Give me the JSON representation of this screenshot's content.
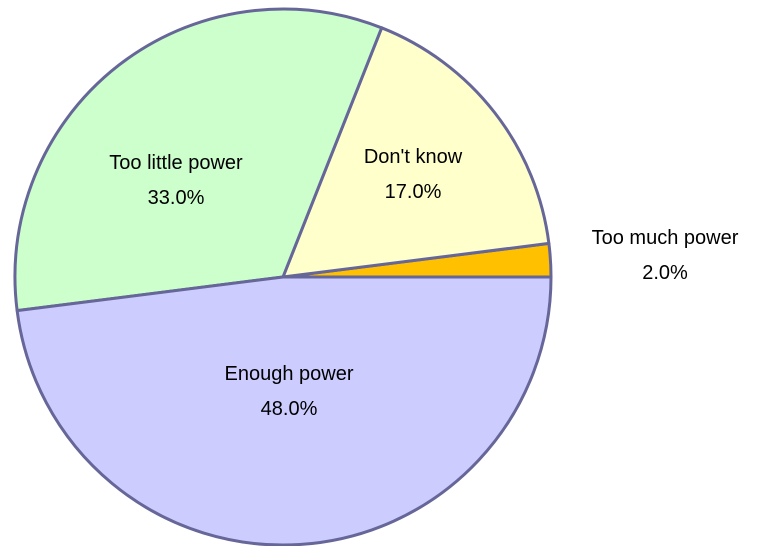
{
  "chart_data": {
    "type": "pie",
    "title": "",
    "slices": [
      {
        "label": "Too much power",
        "value": 2.0,
        "value_label": "2.0%",
        "color": "#ffc000"
      },
      {
        "label": "Don't know",
        "value": 17.0,
        "value_label": "17.0%",
        "color": "#ffffcc"
      },
      {
        "label": "Too little power",
        "value": 33.0,
        "value_label": "33.0%",
        "color": "#ccffcc"
      },
      {
        "label": "Enough power",
        "value": 48.0,
        "value_label": "48.0%",
        "color": "#ccccff"
      }
    ],
    "start_angle_deg": 0,
    "direction": "counterclockwise",
    "border_color": "#666699"
  }
}
